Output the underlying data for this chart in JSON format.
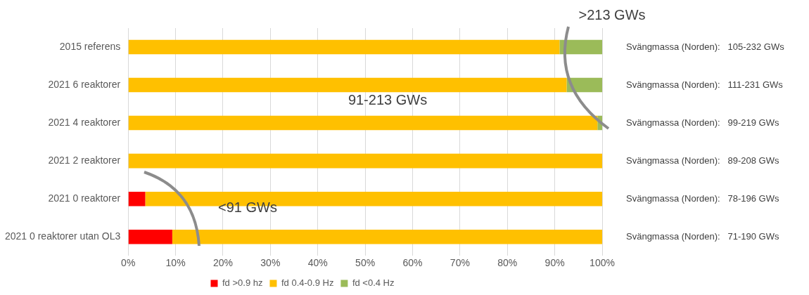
{
  "chart_data": {
    "type": "bar",
    "orientation": "horizontal",
    "stacked": true,
    "categories": [
      "2015 referens",
      "2021 6 reaktorer",
      "2021 4 reaktorer",
      "2021 2 reaktorer",
      "2021 0 reaktorer",
      "2021 0 reaktorer utan OL3"
    ],
    "series": [
      {
        "name": "fd >0.9 hz",
        "color": "#ff0000",
        "values": [
          0,
          0,
          0,
          0,
          3.6,
          9.3
        ]
      },
      {
        "name": "fd 0.4-0.9 Hz",
        "color": "#ffc000",
        "values": [
          91,
          92.5,
          99,
          100,
          96.4,
          90.7
        ]
      },
      {
        "name": "fd <0.4 Hz",
        "color": "#9bbb59",
        "values": [
          9,
          7.5,
          1,
          0,
          0,
          0
        ]
      }
    ],
    "xlim": [
      0,
      100
    ],
    "xticks": [
      {
        "value": 0,
        "label": "0%"
      },
      {
        "value": 10,
        "label": "10%"
      },
      {
        "value": 20,
        "label": "20%"
      },
      {
        "value": 30,
        "label": "30%"
      },
      {
        "value": 40,
        "label": "40%"
      },
      {
        "value": 50,
        "label": "50%"
      },
      {
        "value": 60,
        "label": "60%"
      },
      {
        "value": 70,
        "label": "70%"
      },
      {
        "value": 80,
        "label": "80%"
      },
      {
        "value": 90,
        "label": "90%"
      },
      {
        "value": 100,
        "label": "100%"
      }
    ],
    "grid": "x",
    "legend": "bottom",
    "annotations": [
      ">213 GWs",
      "91-213 GWs",
      "<91 GWs",
      "Svängmassa (Norden):   105-232 GWs",
      "Svängmassa (Norden):   111-231 GWs",
      "Svängmassa (Norden):   99-219 GWs",
      "Svängmassa (Norden):   89-208 GWs",
      "Svängmassa (Norden):   78-196 GWs",
      "Svängmassa (Norden):   71-190 GWs"
    ]
  }
}
